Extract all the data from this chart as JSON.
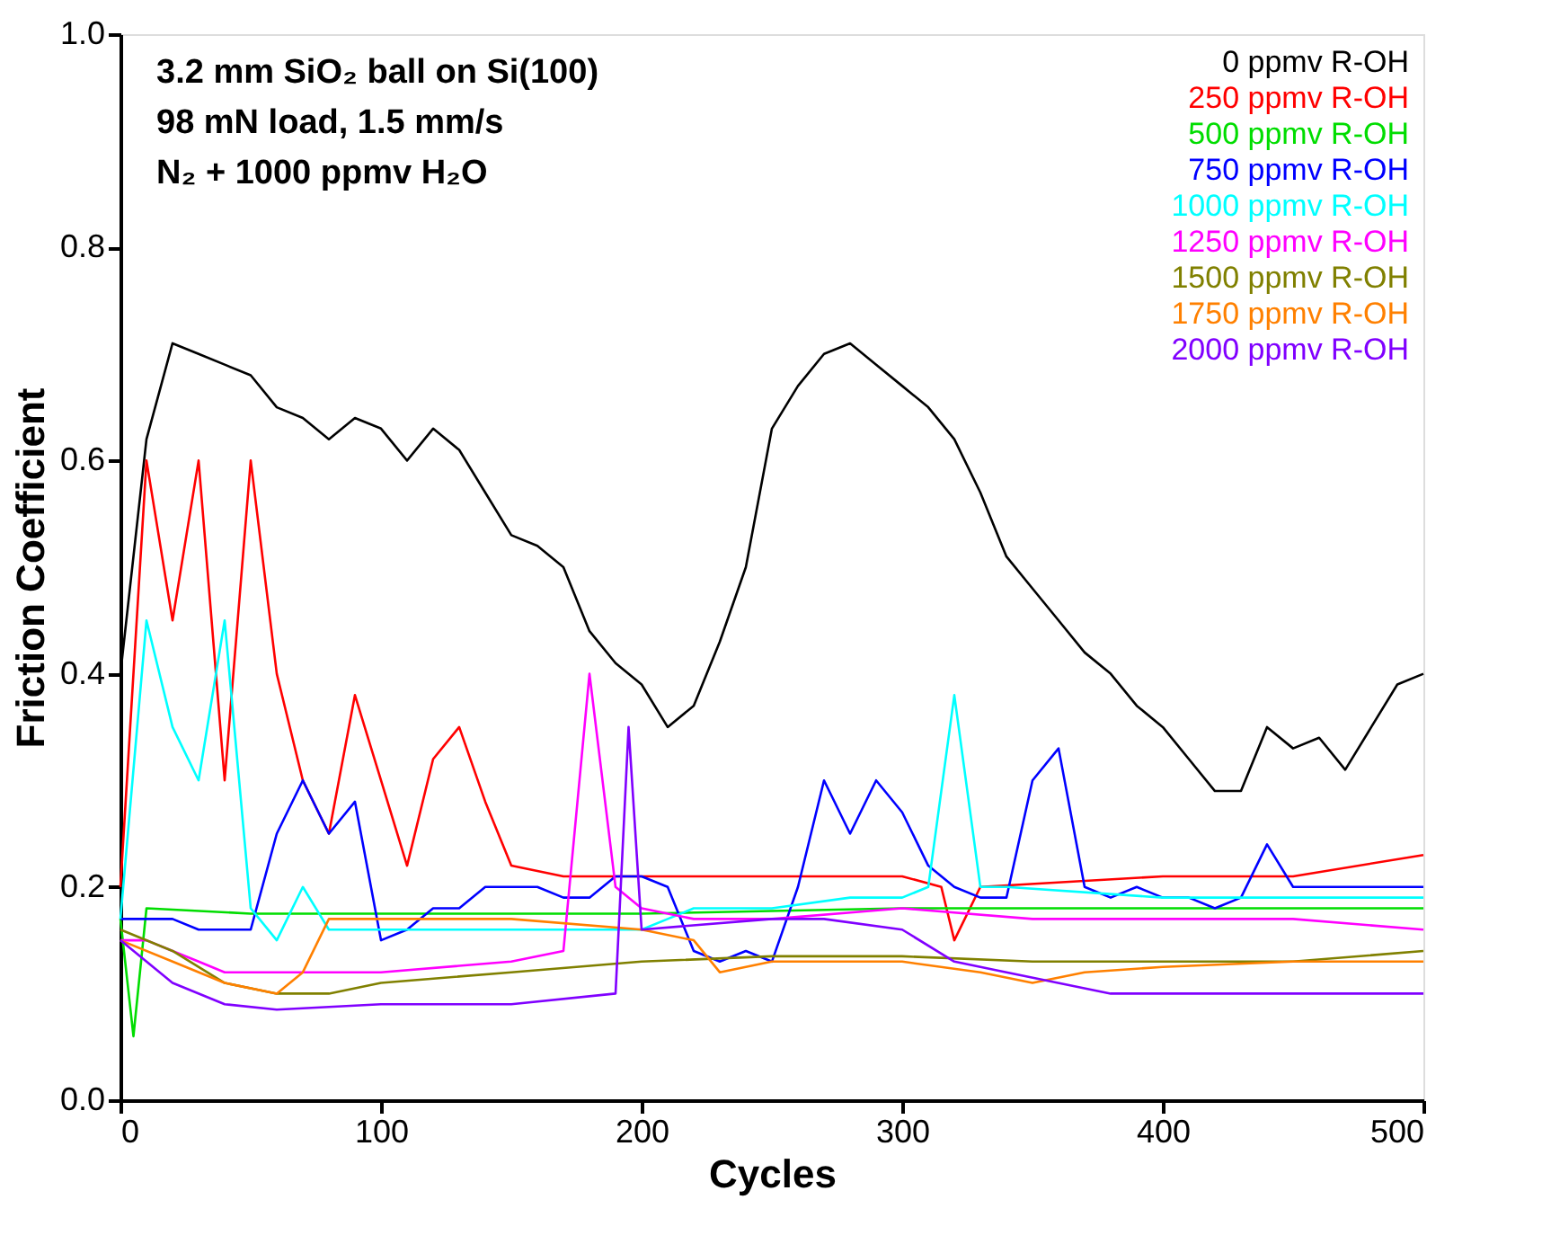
{
  "chart_data": {
    "type": "line",
    "xlabel": "Cycles",
    "ylabel": "Friction Coefficient",
    "xlim": [
      0,
      500
    ],
    "xticks": [
      0,
      100,
      200,
      300,
      400,
      500
    ],
    "ylim": [
      0,
      1
    ],
    "yticks": [
      {
        "value": 0,
        "label": "0.0"
      },
      0.2,
      0.4,
      0.6,
      0.8,
      {
        "value": 1,
        "label": "1.0"
      }
    ],
    "grid": false,
    "legend": "top right",
    "marker": "none",
    "line_style": "solid",
    "annotations": [
      "3.2 mm SiO₂ ball on Si(100)",
      "98 mN load, 1.5 mm/s",
      "N₂ + 1000 ppmv H₂O"
    ],
    "series": [
      {
        "name": "0 ppmv R-OH",
        "color": "#000000",
        "x": [
          0,
          10,
          20,
          30,
          40,
          50,
          60,
          70,
          80,
          90,
          100,
          110,
          120,
          130,
          140,
          150,
          160,
          170,
          180,
          190,
          200,
          210,
          220,
          230,
          240,
          250,
          260,
          270,
          280,
          290,
          300,
          310,
          320,
          330,
          340,
          350,
          360,
          370,
          380,
          390,
          400,
          410,
          420,
          430,
          440,
          450,
          460,
          470,
          480,
          490,
          500
        ],
        "values": [
          0.4,
          0.62,
          0.71,
          0.7,
          0.69,
          0.68,
          0.65,
          0.64,
          0.62,
          0.64,
          0.63,
          0.6,
          0.63,
          0.61,
          0.57,
          0.53,
          0.52,
          0.5,
          0.44,
          0.41,
          0.39,
          0.35,
          0.37,
          0.43,
          0.5,
          0.63,
          0.67,
          0.7,
          0.71,
          0.69,
          0.67,
          0.65,
          0.62,
          0.57,
          0.51,
          0.48,
          0.45,
          0.42,
          0.4,
          0.37,
          0.35,
          0.32,
          0.29,
          0.29,
          0.35,
          0.33,
          0.34,
          0.31,
          0.35,
          0.39,
          0.4
        ]
      },
      {
        "name": "250 ppmv R-OH",
        "color": "#ff0000",
        "x": [
          0,
          10,
          20,
          30,
          40,
          50,
          60,
          70,
          80,
          90,
          100,
          110,
          120,
          130,
          140,
          150,
          170,
          200,
          250,
          300,
          315,
          320,
          330,
          400,
          450,
          500
        ],
        "values": [
          0.2,
          0.6,
          0.45,
          0.6,
          0.3,
          0.6,
          0.4,
          0.3,
          0.25,
          0.38,
          0.3,
          0.22,
          0.32,
          0.35,
          0.28,
          0.22,
          0.21,
          0.21,
          0.21,
          0.21,
          0.2,
          0.15,
          0.2,
          0.21,
          0.21,
          0.23
        ]
      },
      {
        "name": "500 ppmv R-OH",
        "color": "#00dd00",
        "x": [
          0,
          5,
          10,
          50,
          100,
          200,
          300,
          400,
          500
        ],
        "values": [
          0.17,
          0.06,
          0.18,
          0.175,
          0.175,
          0.175,
          0.18,
          0.18,
          0.18
        ]
      },
      {
        "name": "750 ppmv R-OH",
        "color": "#0000ff",
        "x": [
          0,
          10,
          20,
          30,
          40,
          50,
          60,
          70,
          80,
          90,
          100,
          110,
          120,
          130,
          140,
          150,
          160,
          170,
          180,
          190,
          200,
          210,
          220,
          230,
          240,
          250,
          260,
          270,
          280,
          290,
          300,
          310,
          320,
          330,
          340,
          350,
          360,
          370,
          380,
          390,
          400,
          410,
          420,
          430,
          440,
          450,
          460,
          470,
          480,
          490,
          500
        ],
        "values": [
          0.17,
          0.17,
          0.17,
          0.16,
          0.16,
          0.16,
          0.25,
          0.3,
          0.25,
          0.28,
          0.15,
          0.16,
          0.18,
          0.18,
          0.2,
          0.2,
          0.2,
          0.19,
          0.19,
          0.21,
          0.21,
          0.2,
          0.14,
          0.13,
          0.14,
          0.13,
          0.2,
          0.3,
          0.25,
          0.3,
          0.27,
          0.22,
          0.2,
          0.19,
          0.19,
          0.3,
          0.33,
          0.2,
          0.19,
          0.2,
          0.19,
          0.19,
          0.18,
          0.19,
          0.24,
          0.2,
          0.2,
          0.2,
          0.2,
          0.2,
          0.2
        ]
      },
      {
        "name": "1000 ppmv R-OH",
        "color": "#00ffff",
        "x": [
          0,
          10,
          20,
          30,
          40,
          50,
          60,
          70,
          80,
          100,
          150,
          200,
          210,
          220,
          250,
          280,
          300,
          310,
          320,
          330,
          340,
          400,
          500
        ],
        "values": [
          0.17,
          0.45,
          0.35,
          0.3,
          0.45,
          0.18,
          0.15,
          0.2,
          0.16,
          0.16,
          0.16,
          0.16,
          0.17,
          0.18,
          0.18,
          0.19,
          0.19,
          0.2,
          0.38,
          0.2,
          0.2,
          0.19,
          0.19
        ]
      },
      {
        "name": "1250 ppmv R-OH",
        "color": "#ff00ff",
        "x": [
          0,
          10,
          20,
          30,
          40,
          60,
          100,
          150,
          170,
          180,
          190,
          200,
          220,
          250,
          300,
          350,
          400,
          450,
          500
        ],
        "values": [
          0.15,
          0.15,
          0.14,
          0.13,
          0.12,
          0.12,
          0.12,
          0.13,
          0.14,
          0.4,
          0.2,
          0.18,
          0.17,
          0.17,
          0.18,
          0.17,
          0.17,
          0.17,
          0.16
        ]
      },
      {
        "name": "1500 ppmv R-OH",
        "color": "#808000",
        "x": [
          0,
          20,
          40,
          60,
          80,
          100,
          150,
          200,
          250,
          300,
          350,
          400,
          450,
          500
        ],
        "values": [
          0.16,
          0.14,
          0.11,
          0.1,
          0.1,
          0.11,
          0.12,
          0.13,
          0.135,
          0.135,
          0.13,
          0.13,
          0.13,
          0.14
        ]
      },
      {
        "name": "1750 ppmv R-OH",
        "color": "#ff8000",
        "x": [
          0,
          20,
          40,
          60,
          70,
          80,
          100,
          150,
          200,
          220,
          230,
          250,
          280,
          300,
          330,
          350,
          370,
          400,
          450,
          500
        ],
        "values": [
          0.15,
          0.13,
          0.11,
          0.1,
          0.12,
          0.17,
          0.17,
          0.17,
          0.16,
          0.15,
          0.12,
          0.13,
          0.13,
          0.13,
          0.12,
          0.11,
          0.12,
          0.125,
          0.13,
          0.13
        ]
      },
      {
        "name": "2000 ppmv R-OH",
        "color": "#8000ff",
        "x": [
          0,
          20,
          40,
          60,
          100,
          150,
          190,
          195,
          200,
          250,
          270,
          300,
          320,
          340,
          380,
          400,
          450,
          500
        ],
        "values": [
          0.15,
          0.11,
          0.09,
          0.085,
          0.09,
          0.09,
          0.1,
          0.35,
          0.16,
          0.17,
          0.17,
          0.16,
          0.13,
          0.12,
          0.1,
          0.1,
          0.1,
          0.1
        ]
      }
    ]
  }
}
